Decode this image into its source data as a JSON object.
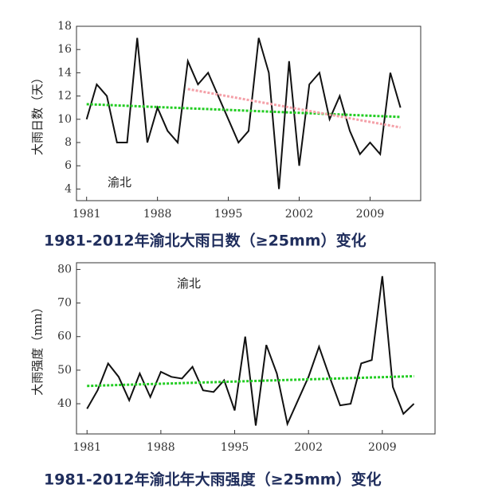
{
  "chart_data": [
    {
      "type": "line",
      "caption": "1981-2012年渝北大雨日数（≥25mm）变化",
      "ylabel": "大雨日数（天）",
      "annotation": "渝北",
      "x": [
        1981,
        1982,
        1983,
        1984,
        1985,
        1986,
        1987,
        1988,
        1989,
        1990,
        1991,
        1992,
        1993,
        1994,
        1995,
        1996,
        1997,
        1998,
        1999,
        2000,
        2001,
        2002,
        2003,
        2004,
        2005,
        2006,
        2007,
        2008,
        2009,
        2010,
        2011,
        2012
      ],
      "series": [
        {
          "color": "#111111",
          "values": [
            10,
            13,
            12,
            8,
            8,
            17,
            8,
            11,
            9,
            8,
            15,
            13,
            14,
            12,
            10,
            8,
            9,
            17,
            14,
            4,
            15,
            6,
            13,
            14,
            10,
            12,
            9,
            7,
            8,
            7,
            14,
            11
          ]
        }
      ],
      "trend_lines": [
        {
          "x": [
            1981,
            2012
          ],
          "values": [
            11.3,
            10.2
          ],
          "color": "#22cc22"
        },
        {
          "x": [
            1991,
            2012
          ],
          "values": [
            12.6,
            9.3
          ],
          "color": "#f4a0a8"
        }
      ],
      "xlim": [
        1980,
        2014
      ],
      "ylim": [
        3,
        18
      ],
      "xticks": [
        1981,
        1988,
        1995,
        2002,
        2009
      ],
      "yticks": [
        4,
        6,
        8,
        10,
        12,
        14,
        16,
        18
      ]
    },
    {
      "type": "line",
      "caption": "1981-2012年渝北年大雨强度（≥25mm）变化",
      "ylabel": "大雨强度（mm）",
      "annotation": "渝北",
      "x": [
        1981,
        1982,
        1983,
        1984,
        1985,
        1986,
        1987,
        1988,
        1989,
        1990,
        1991,
        1992,
        1993,
        1994,
        1995,
        1996,
        1997,
        1998,
        1999,
        2000,
        2001,
        2002,
        2003,
        2004,
        2005,
        2006,
        2007,
        2008,
        2009,
        2010,
        2011,
        2012
      ],
      "series": [
        {
          "color": "#111111",
          "values": [
            38.5,
            44,
            52,
            48,
            41,
            49,
            42,
            49.5,
            48,
            47.5,
            51,
            44,
            43.5,
            47,
            38,
            60,
            33.5,
            57.5,
            49,
            34,
            41,
            48,
            57,
            48,
            39.5,
            40,
            52,
            53,
            78,
            45,
            37,
            40
          ]
        }
      ],
      "trend_lines": [
        {
          "x": [
            1981,
            2012
          ],
          "values": [
            45.3,
            48.2
          ],
          "color": "#22cc22"
        }
      ],
      "xlim": [
        1980,
        2014
      ],
      "ylim": [
        31,
        82
      ],
      "xticks": [
        1981,
        1988,
        1995,
        2002,
        2009
      ],
      "yticks": [
        40,
        50,
        60,
        70,
        80
      ]
    }
  ]
}
